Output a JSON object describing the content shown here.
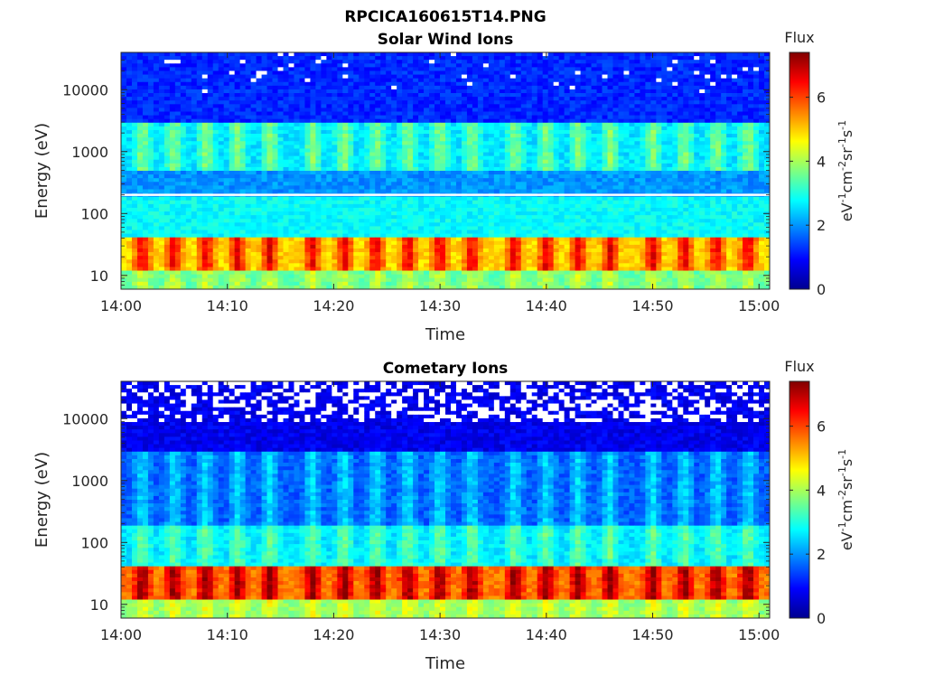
{
  "figure_title": "RPCICA160615T14.PNG",
  "colormap": "jet",
  "chart_data": [
    {
      "type": "heatmap",
      "title": "Solar Wind Ions",
      "xlabel": "Time",
      "ylabel": "Energy (eV)",
      "x_ticks": [
        "14:00",
        "14:10",
        "14:20",
        "14:30",
        "14:40",
        "14:50",
        "15:00"
      ],
      "xlim": [
        "14:00",
        "15:01"
      ],
      "y_scale": "log",
      "y_ticks": [
        10,
        100,
        1000,
        10000
      ],
      "y_tick_labels": [
        "10",
        "100",
        "1000",
        "10000"
      ],
      "ylim": [
        6,
        40000
      ],
      "colorbar": {
        "title": "Flux",
        "label_base": "eV",
        "label_parts": [
          "-1",
          "cm",
          "-2",
          "sr",
          "-1",
          "s",
          "-1"
        ],
        "ticks": [
          0,
          2,
          4,
          6
        ],
        "range": [
          0,
          7.4
        ]
      },
      "white_line_energy": 200,
      "pulse_times": [
        "14:02",
        "14:05",
        "14:08",
        "14:11",
        "14:14",
        "14:18",
        "14:21",
        "14:24",
        "14:27",
        "14:30",
        "14:33",
        "14:37",
        "14:40",
        "14:43",
        "14:46",
        "14:50",
        "14:53",
        "14:56",
        "14:59"
      ],
      "bands": [
        {
          "energy_range": [
            6,
            12
          ],
          "flux": 3.5
        },
        {
          "energy_range": [
            12,
            40
          ],
          "flux": 5.5
        },
        {
          "energy_range": [
            40,
            200
          ],
          "flux": 2.8
        },
        {
          "energy_range": [
            200,
            500
          ],
          "flux": 2.0
        },
        {
          "energy_range": [
            500,
            3000
          ],
          "flux": 3.0
        },
        {
          "energy_range": [
            3000,
            40000
          ],
          "flux": 1.2
        }
      ]
    },
    {
      "type": "heatmap",
      "title": "Cometary Ions",
      "xlabel": "Time",
      "ylabel": "Energy (eV)",
      "x_ticks": [
        "14:00",
        "14:10",
        "14:20",
        "14:30",
        "14:40",
        "14:50",
        "15:00"
      ],
      "xlim": [
        "14:00",
        "15:01"
      ],
      "y_scale": "log",
      "y_ticks": [
        10,
        100,
        1000,
        10000
      ],
      "y_tick_labels": [
        "10",
        "100",
        "1000",
        "10000"
      ],
      "ylim": [
        6,
        40000
      ],
      "colorbar": {
        "title": "Flux",
        "label_base": "eV",
        "label_parts": [
          "-1",
          "cm",
          "-2",
          "sr",
          "-1",
          "s",
          "-1"
        ],
        "ticks": [
          0,
          2,
          4,
          6
        ],
        "range": [
          0,
          7.4
        ]
      },
      "pulse_times": [
        "14:02",
        "14:05",
        "14:08",
        "14:11",
        "14:14",
        "14:18",
        "14:21",
        "14:24",
        "14:27",
        "14:30",
        "14:33",
        "14:37",
        "14:40",
        "14:43",
        "14:46",
        "14:50",
        "14:53",
        "14:56",
        "14:59"
      ],
      "bands": [
        {
          "energy_range": [
            6,
            12
          ],
          "flux": 3.8
        },
        {
          "energy_range": [
            12,
            40
          ],
          "flux": 6.2
        },
        {
          "energy_range": [
            40,
            200
          ],
          "flux": 2.8
        },
        {
          "energy_range": [
            200,
            3000
          ],
          "flux": 1.8
        },
        {
          "energy_range": [
            3000,
            40000
          ],
          "flux": 0.8
        }
      ]
    }
  ]
}
